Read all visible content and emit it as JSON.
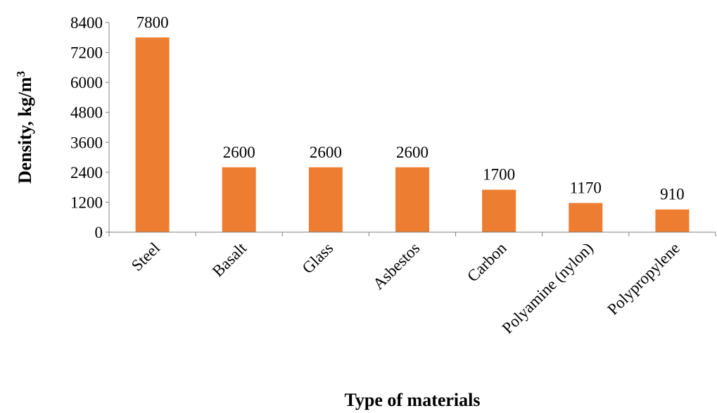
{
  "chart_data": {
    "type": "bar",
    "categories": [
      "Steel",
      "Basalt",
      "Glass",
      "Asbestos",
      "Carbon",
      "Polyamine (nylon)",
      "Polypropylene"
    ],
    "values": [
      7800,
      2600,
      2600,
      2600,
      1700,
      1170,
      910
    ],
    "data_labels": [
      "7800",
      "2600",
      "2600",
      "2600",
      "1700",
      "1170",
      "910"
    ],
    "xlabel": "Type of materials",
    "ylabel": "Density, kg/m",
    "ylabel_superscript": "3",
    "ylim": [
      0,
      8400
    ],
    "yticks": [
      "0",
      "1200",
      "2400",
      "3600",
      "4800",
      "6000",
      "7200",
      "8400"
    ],
    "bar_color": "#ED7D31",
    "grid": false,
    "legend": "none"
  }
}
